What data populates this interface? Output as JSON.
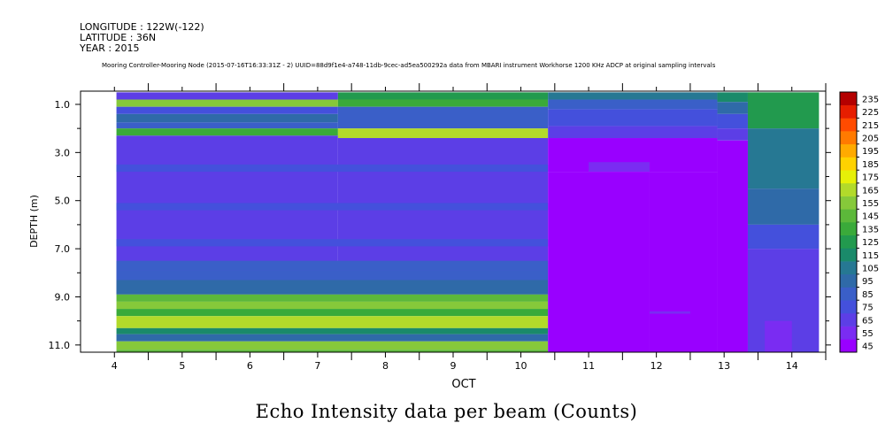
{
  "header": {
    "longitude": "LONGITUDE : 122W(-122)",
    "latitude": "LATITUDE : 36N",
    "year": "YEAR : 2015",
    "subtitle": "Mooring Controller-Mooring Node (2015-07-16T16:33:31Z - 2) UUID=88d9f1e4-a748-11db-9cec-ad5ea500292a data from MBARI instrument Workhorse 1200 KHz ADCP at original sampling intervals"
  },
  "chart_data": {
    "type": "heatmap",
    "title": "Echo Intensity data per beam (Counts)",
    "xlabel": "OCT",
    "ylabel": "DEPTH (m)",
    "xlim": [
      3.5,
      14.5
    ],
    "ylim": [
      11.3,
      0.45
    ],
    "x_ticks": [
      4,
      5,
      6,
      7,
      8,
      9,
      10,
      11,
      12,
      13,
      14
    ],
    "y_ticks": [
      1.0,
      3.0,
      5.0,
      7.0,
      9.0,
      11.0
    ],
    "y_tick_labels": [
      "1.0",
      "3.0",
      "5.0",
      "7.0",
      "9.0",
      "11.0"
    ],
    "colorbar": {
      "levels": [
        45,
        55,
        65,
        75,
        85,
        95,
        105,
        115,
        125,
        135,
        145,
        155,
        165,
        175,
        185,
        195,
        205,
        215,
        225,
        235
      ],
      "colors": [
        "#9900ff",
        "#7a2cf2",
        "#5c3ee6",
        "#4450dc",
        "#3a5fc8",
        "#2f6aa8",
        "#267893",
        "#1a8a6a",
        "#229a4e",
        "#3aaa3a",
        "#5cb83a",
        "#86c93a",
        "#b2da2a",
        "#e6f008",
        "#ffd200",
        "#ffaa00",
        "#ff7a00",
        "#ff4b00",
        "#e61e00",
        "#b40000"
      ]
    },
    "data_start_x": 4.03,
    "cells": [
      {
        "x0": 4.03,
        "x1": 7.3,
        "y0": 0.5,
        "y1": 0.8,
        "v": 70
      },
      {
        "x0": 4.03,
        "x1": 7.3,
        "y0": 0.8,
        "y1": 1.1,
        "v": 160
      },
      {
        "x0": 4.03,
        "x1": 7.3,
        "y0": 1.1,
        "y1": 1.4,
        "v": 80
      },
      {
        "x0": 4.03,
        "x1": 7.3,
        "y0": 1.4,
        "y1": 1.75,
        "v": 95
      },
      {
        "x0": 4.03,
        "x1": 7.3,
        "y0": 1.75,
        "y1": 2.0,
        "v": 90
      },
      {
        "x0": 4.03,
        "x1": 7.3,
        "y0": 2.0,
        "y1": 2.3,
        "v": 140
      },
      {
        "x0": 4.03,
        "x1": 7.3,
        "y0": 2.3,
        "y1": 8.9,
        "v": 72
      },
      {
        "x0": 7.3,
        "x1": 10.4,
        "y0": 0.5,
        "y1": 0.8,
        "v": 125
      },
      {
        "x0": 7.3,
        "x1": 10.4,
        "y0": 0.8,
        "y1": 1.1,
        "v": 140
      },
      {
        "x0": 7.3,
        "x1": 10.4,
        "y0": 1.1,
        "y1": 2.0,
        "v": 85
      },
      {
        "x0": 7.3,
        "x1": 10.4,
        "y0": 2.0,
        "y1": 2.4,
        "v": 170
      },
      {
        "x0": 7.3,
        "x1": 10.4,
        "y0": 2.4,
        "y1": 8.9,
        "v": 72
      },
      {
        "x0": 4.03,
        "x1": 10.4,
        "y0": 3.5,
        "y1": 3.8,
        "v": 80
      },
      {
        "x0": 4.03,
        "x1": 10.4,
        "y0": 5.1,
        "y1": 5.4,
        "v": 78
      },
      {
        "x0": 4.03,
        "x1": 10.4,
        "y0": 6.6,
        "y1": 6.9,
        "v": 78
      },
      {
        "x0": 4.03,
        "x1": 10.4,
        "y0": 7.5,
        "y1": 7.9,
        "v": 90
      },
      {
        "x0": 4.03,
        "x1": 10.4,
        "y0": 7.9,
        "y1": 8.3,
        "v": 85
      },
      {
        "x0": 4.03,
        "x1": 10.4,
        "y0": 8.3,
        "y1": 8.9,
        "v": 95
      },
      {
        "x0": 4.03,
        "x1": 10.4,
        "y0": 8.9,
        "y1": 9.2,
        "v": 150
      },
      {
        "x0": 4.03,
        "x1": 10.4,
        "y0": 9.2,
        "y1": 9.5,
        "v": 160
      },
      {
        "x0": 4.03,
        "x1": 10.4,
        "y0": 9.5,
        "y1": 9.8,
        "v": 140
      },
      {
        "x0": 4.03,
        "x1": 10.4,
        "y0": 9.8,
        "y1": 10.3,
        "v": 165
      },
      {
        "x0": 4.03,
        "x1": 10.4,
        "y0": 10.3,
        "y1": 10.55,
        "v": 120
      },
      {
        "x0": 4.03,
        "x1": 10.4,
        "y0": 10.55,
        "y1": 10.85,
        "v": 100
      },
      {
        "x0": 4.03,
        "x1": 10.4,
        "y0": 10.85,
        "y1": 11.2,
        "v": 160
      },
      {
        "x0": 4.03,
        "x1": 10.4,
        "y0": 11.2,
        "y1": 11.3,
        "v": 145
      },
      {
        "x0": 10.4,
        "x1": 12.9,
        "y0": 0.5,
        "y1": 0.8,
        "v": 110
      },
      {
        "x0": 10.4,
        "x1": 12.9,
        "y0": 0.8,
        "y1": 1.2,
        "v": 90
      },
      {
        "x0": 10.4,
        "x1": 12.9,
        "y0": 1.2,
        "y1": 1.9,
        "v": 80
      },
      {
        "x0": 10.4,
        "x1": 12.9,
        "y0": 1.9,
        "y1": 2.4,
        "v": 70
      },
      {
        "x0": 10.4,
        "x1": 12.9,
        "y0": 2.4,
        "y1": 3.8,
        "v": 48
      },
      {
        "x0": 11.0,
        "x1": 11.9,
        "y0": 3.4,
        "y1": 3.8,
        "v": 55
      },
      {
        "x0": 10.4,
        "x1": 11.9,
        "y0": 3.8,
        "y1": 11.3,
        "v": 48
      },
      {
        "x0": 11.9,
        "x1": 12.9,
        "y0": 3.8,
        "y1": 11.3,
        "v": 50
      },
      {
        "x0": 11.9,
        "x1": 12.5,
        "y0": 9.6,
        "y1": 9.7,
        "v": 55
      },
      {
        "x0": 12.9,
        "x1": 13.35,
        "y0": 0.5,
        "y1": 0.9,
        "v": 120
      },
      {
        "x0": 12.9,
        "x1": 13.35,
        "y0": 0.9,
        "y1": 1.4,
        "v": 100
      },
      {
        "x0": 12.9,
        "x1": 13.35,
        "y0": 1.4,
        "y1": 2.0,
        "v": 75
      },
      {
        "x0": 12.9,
        "x1": 13.35,
        "y0": 2.0,
        "y1": 2.5,
        "v": 65
      },
      {
        "x0": 12.9,
        "x1": 13.35,
        "y0": 2.5,
        "y1": 11.3,
        "v": 52
      },
      {
        "x0": 13.35,
        "x1": 14.4,
        "y0": 0.5,
        "y1": 2.0,
        "v": 130
      },
      {
        "x0": 13.35,
        "x1": 14.4,
        "y0": 2.0,
        "y1": 4.5,
        "v": 110
      },
      {
        "x0": 13.35,
        "x1": 14.4,
        "y0": 4.5,
        "y1": 6.0,
        "v": 95
      },
      {
        "x0": 13.35,
        "x1": 14.4,
        "y0": 6.0,
        "y1": 7.0,
        "v": 80
      },
      {
        "x0": 13.35,
        "x1": 14.4,
        "y0": 7.0,
        "y1": 11.3,
        "v": 65
      },
      {
        "x0": 13.6,
        "x1": 14.0,
        "y0": 10.0,
        "y1": 11.3,
        "v": 58
      }
    ]
  }
}
